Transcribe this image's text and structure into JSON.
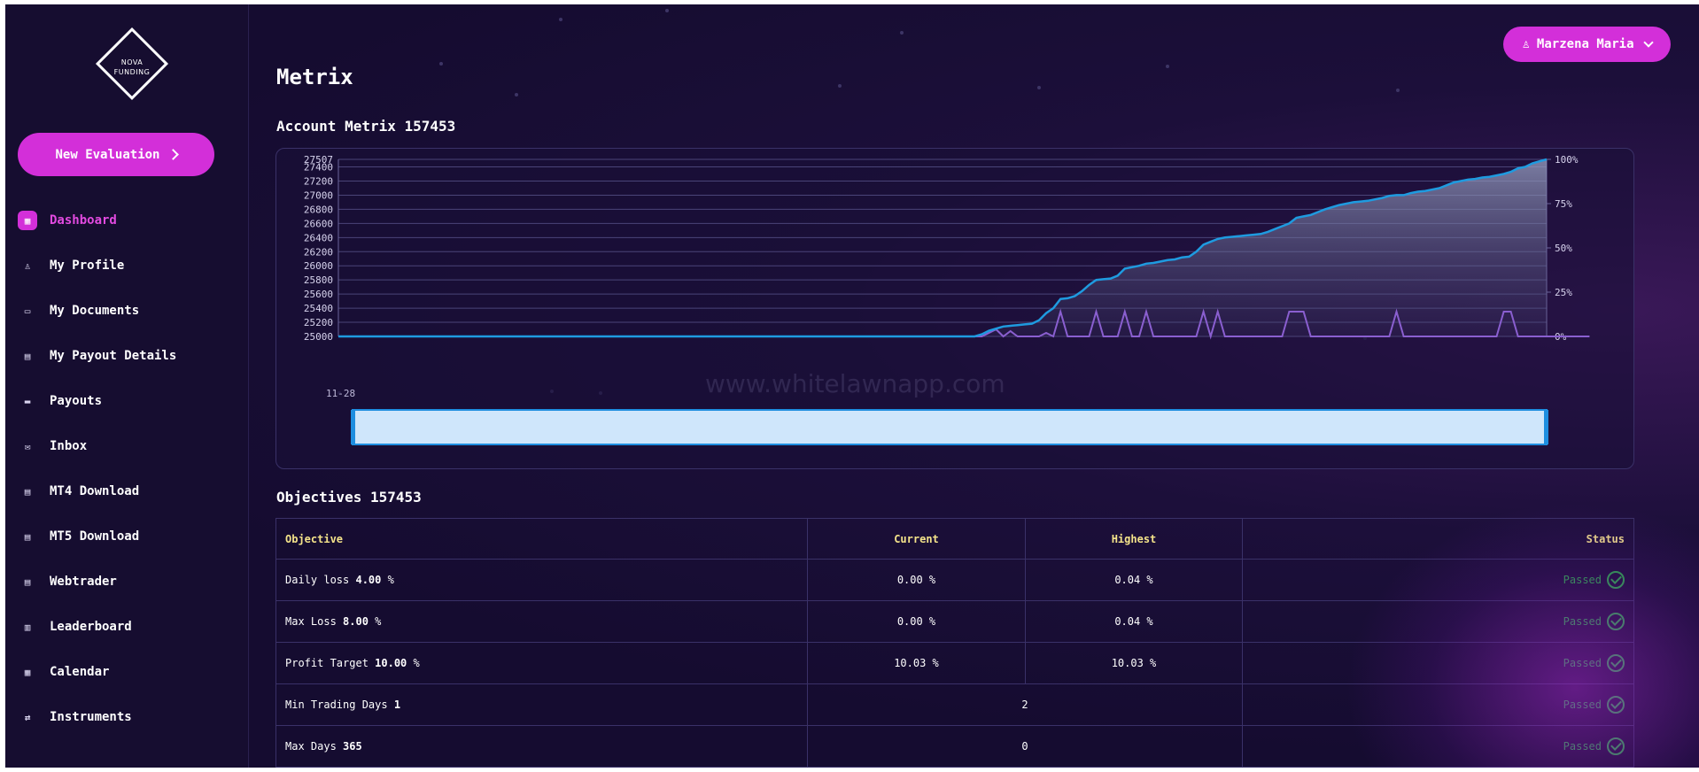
{
  "brand": {
    "logo_line1": "NOVA",
    "logo_line2": "FUNDING"
  },
  "sidebar": {
    "new_evaluation_label": "New Evaluation",
    "items": [
      {
        "label": "Dashboard",
        "icon": "dashboard-icon",
        "active": true
      },
      {
        "label": "My Profile",
        "icon": "user-icon"
      },
      {
        "label": "My Documents",
        "icon": "folder-icon"
      },
      {
        "label": "My Payout Details",
        "icon": "card-icon"
      },
      {
        "label": "Payouts",
        "icon": "wallet-icon"
      },
      {
        "label": "Inbox",
        "icon": "mail-icon"
      },
      {
        "label": "MT4 Download",
        "icon": "download-icon"
      },
      {
        "label": "MT5 Download",
        "icon": "download-icon"
      },
      {
        "label": "Webtrader",
        "icon": "monitor-icon"
      },
      {
        "label": "Leaderboard",
        "icon": "bar-chart-icon"
      },
      {
        "label": "Calendar",
        "icon": "calendar-icon"
      },
      {
        "label": "Instruments",
        "icon": "swap-icon"
      }
    ]
  },
  "header": {
    "user_name": "Marzena Maria",
    "page_title": "Metrix"
  },
  "account_title": "Account Metrix 157453",
  "objectives_title": "Objectives 157453",
  "watermark": "www.whitelawnapp.com",
  "colors": {
    "accent": "#d32fd9",
    "equity_line": "#1e9be0",
    "drawdown_line": "#8a5fd0",
    "passed": "#2bb04a",
    "header_text": "#f4e38a"
  },
  "chart_data": {
    "type": "line",
    "x_start_label": "11-28",
    "left_ticks": [
      "27507",
      "27400",
      "27200",
      "27000",
      "26800",
      "26600",
      "26400",
      "26200",
      "26000",
      "25800",
      "25600",
      "25400",
      "25200",
      "25000"
    ],
    "right_ticks": [
      "100%",
      "75%",
      "50%",
      "25%",
      "0%"
    ],
    "ylim": [
      25000,
      27507
    ],
    "y2lim": [
      0,
      100
    ],
    "grid": true,
    "series": [
      {
        "values": [
          25000,
          25000,
          25000,
          25000,
          25000,
          25000,
          25000,
          25000,
          25000,
          25000,
          25000,
          25000,
          25000,
          25000,
          25000,
          25000,
          25000,
          25000,
          25000,
          25000,
          25000,
          25000,
          25000,
          25000,
          25000,
          25000,
          25000,
          25000,
          25000,
          25000,
          25000,
          25000,
          25000,
          25000,
          25000,
          25000,
          25000,
          25000,
          25000,
          25000,
          25000,
          25000,
          25000,
          25000,
          25000,
          25000,
          25000,
          25000,
          25000,
          25000,
          25000,
          25000,
          25000,
          25000,
          25000,
          25000,
          25000,
          25000,
          25000,
          25000,
          25000,
          25000,
          25000,
          25000,
          25000,
          25000,
          25000,
          25000,
          25000,
          25000,
          25000,
          25000,
          25000,
          25000,
          25000,
          25000,
          25000,
          25000,
          25000,
          25000,
          25000,
          25000,
          25000,
          25000,
          25000,
          25000,
          25000,
          25000,
          25000,
          25000,
          25030,
          25080,
          25110,
          25140,
          25150,
          25160,
          25170,
          25180,
          25230,
          25330,
          25400,
          25530,
          25540,
          25570,
          25640,
          25730,
          25800,
          25810,
          25820,
          25860,
          25960,
          25980,
          26000,
          26030,
          26040,
          26060,
          26080,
          26090,
          26120,
          26130,
          26200,
          26300,
          26340,
          26380,
          26400,
          26410,
          26420,
          26430,
          26440,
          26450,
          26480,
          26520,
          26560,
          26600,
          26680,
          26700,
          26720,
          26760,
          26800,
          26830,
          26860,
          26880,
          26900,
          26910,
          26920,
          26940,
          26960,
          26990,
          27000,
          27000,
          27030,
          27050,
          27060,
          27080,
          27100,
          27140,
          27180,
          27200,
          27220,
          27230,
          27250,
          27260,
          27280,
          27300,
          27330,
          27380,
          27400,
          27450,
          27480,
          27507
        ]
      },
      {
        "values": [
          0,
          0,
          0,
          0,
          0,
          0,
          0,
          0,
          0,
          0,
          0,
          0,
          0,
          0,
          0,
          0,
          0,
          0,
          0,
          0,
          0,
          0,
          0,
          0,
          0,
          0,
          0,
          0,
          0,
          0,
          0,
          0,
          0,
          0,
          0,
          0,
          0,
          0,
          0,
          0,
          0,
          0,
          0,
          0,
          0,
          0,
          0,
          0,
          0,
          0,
          0,
          0,
          0,
          0,
          0,
          0,
          0,
          0,
          0,
          0,
          0,
          0,
          0,
          0,
          0,
          0,
          0,
          0,
          0,
          0,
          0,
          0,
          0,
          0,
          0,
          0,
          0,
          0,
          0,
          0,
          0,
          0,
          0,
          0,
          0,
          0,
          0,
          0,
          0,
          0,
          0,
          2,
          4,
          0,
          3,
          0,
          0,
          0,
          0,
          2,
          0,
          14,
          0,
          0,
          0,
          0,
          14,
          0,
          0,
          0,
          14,
          0,
          0,
          14,
          0,
          0,
          0,
          0,
          0,
          0,
          0,
          14,
          0,
          14,
          0,
          0,
          0,
          0,
          0,
          0,
          0,
          0,
          0,
          14,
          14,
          14,
          0,
          0,
          0,
          0,
          0,
          0,
          0,
          0,
          0,
          0,
          0,
          0,
          14,
          0,
          0,
          0,
          0,
          0,
          0,
          0,
          0,
          0,
          0,
          0,
          0,
          0,
          0,
          14,
          14,
          0,
          0,
          0,
          0,
          0,
          0,
          0,
          0,
          0,
          0,
          0
        ]
      }
    ]
  },
  "objectives": {
    "headers": {
      "objective": "Objective",
      "current": "Current",
      "highest": "Highest",
      "status": "Status"
    },
    "rows": [
      {
        "name": "Daily loss",
        "value": "4.00",
        "unit": "%",
        "current": "0.00 %",
        "highest": "0.04 %",
        "status": "Passed"
      },
      {
        "name": "Max Loss",
        "value": "8.00",
        "unit": "%",
        "current": "0.00 %",
        "highest": "0.04 %",
        "status": "Passed"
      },
      {
        "name": "Profit Target",
        "value": "10.00",
        "unit": "%",
        "current": "10.03 %",
        "highest": "10.03 %",
        "status": "Passed"
      },
      {
        "name": "Min Trading Days",
        "value": "1",
        "unit": "",
        "merged": "2",
        "status": "Passed"
      },
      {
        "name": "Max Days",
        "value": "365",
        "unit": "",
        "merged": "0",
        "status": "Passed"
      }
    ]
  }
}
